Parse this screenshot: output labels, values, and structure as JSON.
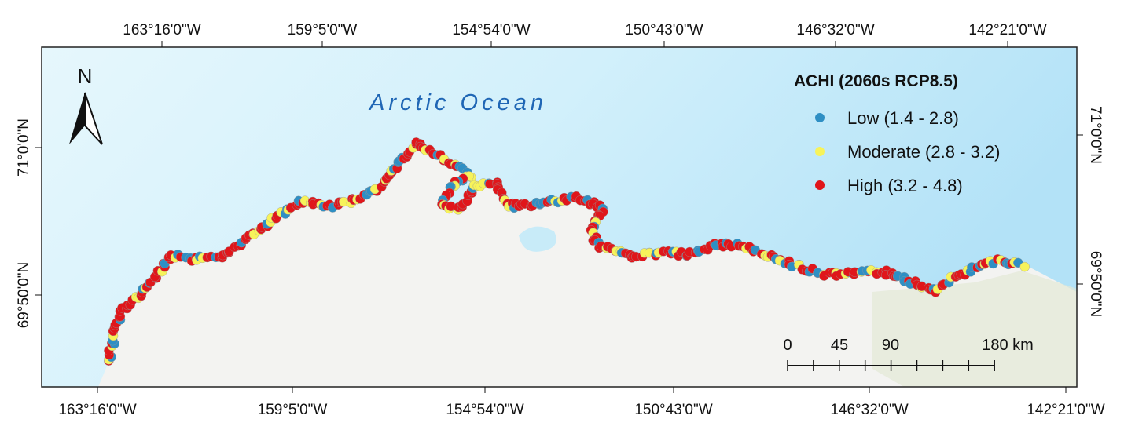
{
  "map_label": "Arctic Ocean",
  "north_arrow": "N",
  "legend": {
    "title": "ACHI (2060s RCP8.5)",
    "items": [
      {
        "label": "Low (1.4 - 2.8)",
        "color": "#2e8fc4"
      },
      {
        "label": "Moderate (2.8 - 3.2)",
        "color": "#f7f35a"
      },
      {
        "label": "High (3.2 - 4.8)",
        "color": "#e0161b"
      }
    ]
  },
  "top_labels": [
    "163°16'0\"W",
    "159°5'0\"W",
    "154°54'0\"W",
    "150°43'0\"W",
    "146°32'0\"W",
    "142°21'0\"W"
  ],
  "bottom_labels": [
    "163°16'0\"W",
    "159°5'0\"W",
    "154°54'0\"W",
    "150°43'0\"W",
    "146°32'0\"W",
    "142°21'0\"W"
  ],
  "left_labels": [
    "71°0'0\"N",
    "69°50'0\"N"
  ],
  "right_labels": [
    "71°0'0\"N",
    "69°50'0\"N"
  ],
  "scale_bar": {
    "labels": [
      "0",
      "45",
      "90",
      "180 km"
    ]
  }
}
